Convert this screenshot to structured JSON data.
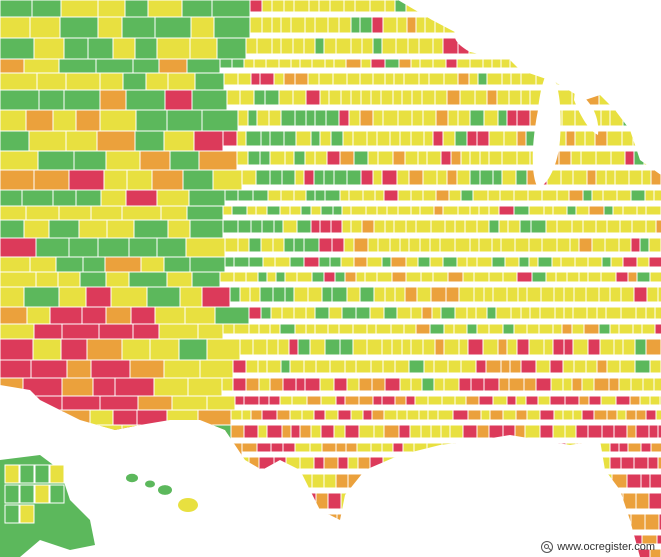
{
  "map": {
    "colors": {
      "green": "#5cb85c",
      "yellow": "#e8e040",
      "orange": "#eba13c",
      "red": "#dc3a5a",
      "county_border": "#ffffff",
      "water": "#ffffff"
    }
  },
  "credit": {
    "icon": "search-icon",
    "text": "www.ocregister.com"
  }
}
